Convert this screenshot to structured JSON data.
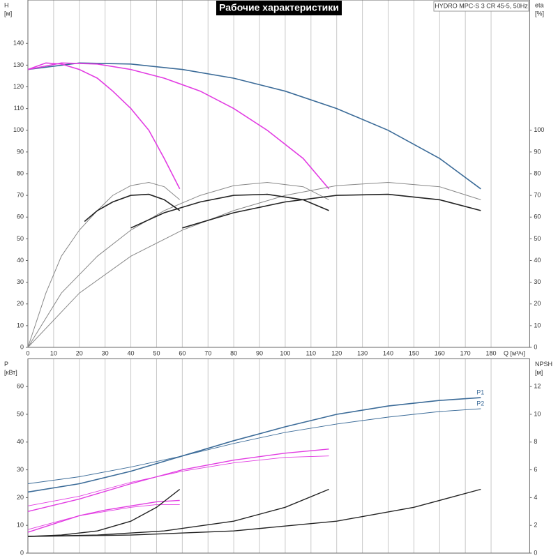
{
  "chart_data": [
    {
      "type": "line",
      "title": "Рабочие характеристики",
      "subtitle": "HYDRO MPC-S 3 CR 45-5, 50Hz",
      "y_label": "H",
      "y_unit": "[м]",
      "y2_label": "eta",
      "y2_unit": "[%]",
      "x_label": "Q [м³/ч]",
      "xlim": [
        0,
        195
      ],
      "ylim": [
        0,
        160
      ],
      "y2lim": [
        0,
        160
      ],
      "xticks": [
        0,
        10,
        20,
        30,
        40,
        50,
        60,
        70,
        80,
        90,
        100,
        110,
        120,
        130,
        140,
        150,
        160,
        170,
        180
      ],
      "yticks": [
        0,
        10,
        20,
        30,
        40,
        50,
        60,
        70,
        80,
        90,
        100,
        110,
        120,
        130,
        140
      ],
      "y2ticks": [
        0,
        10,
        20,
        30,
        40,
        50,
        60,
        70,
        80,
        90,
        100
      ],
      "grid": "x",
      "series": [
        {
          "color": "#3b6b98",
          "width": 1.6,
          "x": [
            0,
            20,
            40,
            60,
            80,
            100,
            120,
            140,
            160,
            176
          ],
          "values": [
            128,
            131,
            130.5,
            128,
            124,
            118,
            110,
            100,
            87,
            73
          ]
        },
        {
          "color": "#e23ce2",
          "width": 1.6,
          "x": [
            0,
            13,
            27,
            40,
            53,
            67,
            80,
            93,
            107,
            117
          ],
          "values": [
            128,
            131,
            130.5,
            128,
            124,
            118,
            110,
            100,
            87,
            73
          ]
        },
        {
          "color": "#e23ce2",
          "width": 1.6,
          "x": [
            0,
            7,
            13,
            20,
            27,
            33,
            40,
            47,
            53,
            59
          ],
          "values": [
            128,
            131,
            130.5,
            128,
            124,
            118,
            110,
            100,
            87,
            73
          ]
        },
        {
          "color": "#888888",
          "width": 1,
          "axis": "y2",
          "x": [
            0,
            20,
            40,
            60,
            80,
            100,
            120,
            140,
            160,
            176
          ],
          "values": [
            0,
            25,
            42,
            54,
            63,
            70,
            74.5,
            76,
            74,
            68
          ]
        },
        {
          "color": "#888888",
          "width": 1,
          "axis": "y2",
          "x": [
            0,
            13,
            27,
            40,
            53,
            67,
            80,
            93,
            107,
            117
          ],
          "values": [
            0,
            25,
            42,
            54,
            63,
            70,
            74.5,
            76,
            74,
            68
          ]
        },
        {
          "color": "#888888",
          "width": 1,
          "axis": "y2",
          "x": [
            0,
            7,
            13,
            20,
            27,
            33,
            40,
            47,
            53,
            59
          ],
          "values": [
            0,
            25,
            42,
            54,
            63,
            70,
            74.5,
            76,
            74,
            68
          ]
        },
        {
          "color": "#222222",
          "width": 1.6,
          "axis": "y2",
          "x": [
            60,
            80,
            100,
            120,
            140,
            160,
            176
          ],
          "values": [
            55,
            62,
            67,
            70,
            70.5,
            68,
            63
          ]
        },
        {
          "color": "#222222",
          "width": 1.6,
          "axis": "y2",
          "x": [
            40,
            53,
            67,
            80,
            93,
            107,
            117
          ],
          "values": [
            55,
            62,
            67,
            70,
            70.5,
            68,
            63
          ]
        },
        {
          "color": "#222222",
          "width": 1.6,
          "axis": "y2",
          "x": [
            22,
            27,
            33,
            40,
            47,
            53,
            59
          ],
          "values": [
            58,
            63,
            67,
            70,
            70.5,
            68,
            63
          ]
        }
      ]
    },
    {
      "type": "line",
      "y_label": "P",
      "y_unit": "[кВт]",
      "y2_label": "NPSH",
      "y2_unit": "[м]",
      "xlim": [
        0,
        195
      ],
      "ylim": [
        0,
        70
      ],
      "y2lim": [
        0,
        14
      ],
      "yticks": [
        0,
        10,
        20,
        30,
        40,
        50,
        60
      ],
      "y2ticks": [
        0,
        2,
        4,
        6,
        8,
        10,
        12
      ],
      "series": [
        {
          "name": "P1",
          "color": "#3b6b98",
          "width": 1.6,
          "x": [
            0,
            20,
            40,
            60,
            80,
            100,
            120,
            140,
            160,
            176
          ],
          "values": [
            22,
            25,
            29.5,
            35,
            40.5,
            45.5,
            50,
            53,
            55,
            56
          ]
        },
        {
          "name": "P2",
          "color": "#3b6b98",
          "width": 0.9,
          "x": [
            0,
            20,
            40,
            60,
            80,
            100,
            120,
            140,
            160,
            176
          ],
          "values": [
            25,
            27.5,
            31,
            35,
            39.5,
            43.5,
            46.5,
            49,
            51,
            52
          ]
        },
        {
          "color": "#e23ce2",
          "width": 1.4,
          "x": [
            0,
            20,
            40,
            60,
            80,
            100,
            117
          ],
          "values": [
            15,
            19.5,
            25,
            30,
            33.5,
            36,
            37.5
          ]
        },
        {
          "color": "#e23ce2",
          "width": 0.9,
          "x": [
            0,
            20,
            40,
            60,
            80,
            100,
            117
          ],
          "values": [
            17,
            20.5,
            25.5,
            29.5,
            32.5,
            34.5,
            35
          ]
        },
        {
          "color": "#e23ce2",
          "width": 1.4,
          "x": [
            0,
            10,
            20,
            30,
            40,
            50,
            59
          ],
          "values": [
            7.5,
            10.5,
            13.5,
            15.5,
            17,
            18.5,
            19
          ]
        },
        {
          "color": "#e23ce2",
          "width": 0.9,
          "x": [
            0,
            10,
            20,
            30,
            40,
            50,
            59
          ],
          "values": [
            8.5,
            11,
            13.5,
            15,
            16.5,
            17.5,
            17.5
          ]
        },
        {
          "color": "#222222",
          "width": 1.4,
          "axis": "y2",
          "x": [
            0,
            40,
            80,
            120,
            150,
            176
          ],
          "values": [
            1.2,
            1.3,
            1.6,
            2.3,
            3.3,
            4.6
          ]
        },
        {
          "color": "#222222",
          "width": 1.4,
          "axis": "y2",
          "x": [
            0,
            27,
            53,
            80,
            100,
            117
          ],
          "values": [
            1.2,
            1.3,
            1.6,
            2.3,
            3.3,
            4.6
          ]
        },
        {
          "color": "#222222",
          "width": 1.4,
          "axis": "y2",
          "x": [
            0,
            13,
            27,
            40,
            50,
            59
          ],
          "values": [
            1.2,
            1.3,
            1.6,
            2.3,
            3.3,
            4.6
          ]
        }
      ]
    }
  ]
}
